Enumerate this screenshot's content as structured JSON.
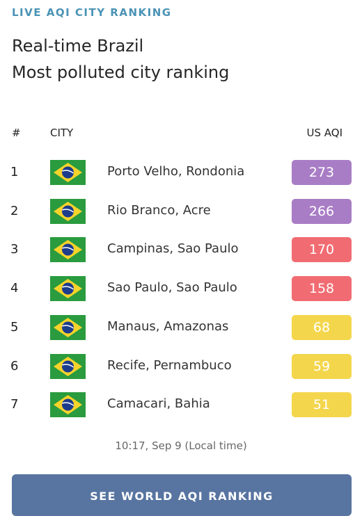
{
  "header": {
    "eyebrow": "LIVE AQI CITY RANKING",
    "title_line1": "Real-time Brazil",
    "title_line2": "Most polluted city ranking"
  },
  "table": {
    "columns": [
      "#",
      "CITY",
      "US AQI"
    ],
    "rows": [
      {
        "rank": 1,
        "city": "Porto Velho, Rondonia",
        "aqi": 273,
        "color": "#a97dc6"
      },
      {
        "rank": 2,
        "city": "Rio Branco, Acre",
        "aqi": 266,
        "color": "#a97dc6"
      },
      {
        "rank": 3,
        "city": "Campinas, Sao Paulo",
        "aqi": 170,
        "color": "#f16c72"
      },
      {
        "rank": 4,
        "city": "Sao Paulo, Sao Paulo",
        "aqi": 158,
        "color": "#f16c72"
      },
      {
        "rank": 5,
        "city": "Manaus, Amazonas",
        "aqi": 68,
        "color": "#f4d64c"
      },
      {
        "rank": 6,
        "city": "Recife, Pernambuco",
        "aqi": 59,
        "color": "#f4d64c"
      },
      {
        "rank": 7,
        "city": "Camacari, Bahia",
        "aqi": 51,
        "color": "#f4d64c"
      }
    ]
  },
  "timestamp": "10:17, Sep 9 (Local time)",
  "button": "SEE WORLD AQI RANKING"
}
